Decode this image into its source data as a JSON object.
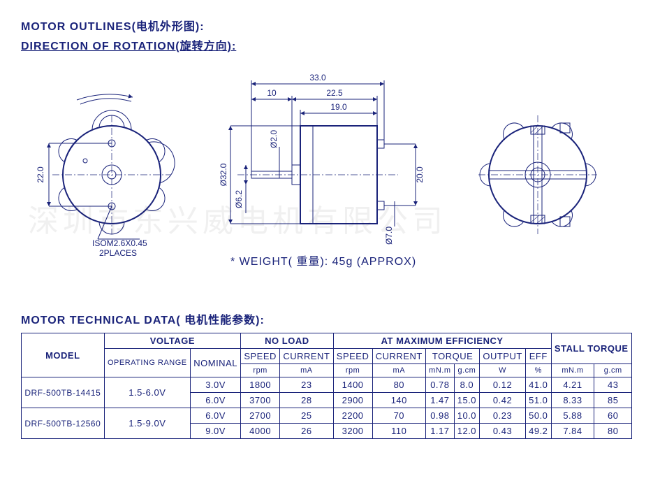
{
  "titles": {
    "outlines": "MOTOR OUTLINES(电机外形图):",
    "rotation": "DIRECTION OF ROTATION(旋转方向):",
    "tech": "MOTOR TECHNICAL DATA( 电机性能参数):"
  },
  "weight_note": "* WEIGHT( 重量): 45g (APPROX)",
  "screw_note1": "ISOM2.6X0.45",
  "screw_note2": "2PLACES",
  "watermark": "深圳市东兴威电机有限公司",
  "dims": {
    "d22": "22.0",
    "d33": "33.0",
    "d10": "10",
    "d225": "22.5",
    "d19": "19.0",
    "d32": "Ø32.0",
    "d62": "Ø6.2",
    "d20_shaft": "Ø2.0",
    "d70": "Ø7.0",
    "d200": "20.0"
  },
  "table": {
    "headers": {
      "model": "MODEL",
      "voltage": "VOLTAGE",
      "noload": "NO LOAD",
      "maxeff": "AT MAXIMUM EFFICIENCY",
      "stall": "STALL TORQUE",
      "oprange": "OPERATING RANGE",
      "nominal": "NOMINAL",
      "speed": "SPEED",
      "current": "CURRENT",
      "torque": "TORQUE",
      "output": "OUTPUT",
      "eff": "EFF",
      "rpm": "rpm",
      "ma": "mA",
      "mnm": "mN.m",
      "gcm": "g.cm",
      "w": "W",
      "pct": "%"
    },
    "rows": [
      {
        "model": "DRF-500TB-14415",
        "range": "1.5-6.0V",
        "lines": [
          {
            "nom": "3.0V",
            "nl_rpm": "1800",
            "nl_ma": "23",
            "me_rpm": "1400",
            "me_ma": "80",
            "me_mnm": "0.78",
            "me_gcm": "8.0",
            "me_w": "0.12",
            "me_eff": "41.0",
            "st_mnm": "4.21",
            "st_gcm": "43"
          },
          {
            "nom": "6.0V",
            "nl_rpm": "3700",
            "nl_ma": "28",
            "me_rpm": "2900",
            "me_ma": "140",
            "me_mnm": "1.47",
            "me_gcm": "15.0",
            "me_w": "0.42",
            "me_eff": "51.0",
            "st_mnm": "8.33",
            "st_gcm": "85"
          }
        ]
      },
      {
        "model": "DRF-500TB-12560",
        "range": "1.5-9.0V",
        "lines": [
          {
            "nom": "6.0V",
            "nl_rpm": "2700",
            "nl_ma": "25",
            "me_rpm": "2200",
            "me_ma": "70",
            "me_mnm": "0.98",
            "me_gcm": "10.0",
            "me_w": "0.23",
            "me_eff": "50.0",
            "st_mnm": "5.88",
            "st_gcm": "60"
          },
          {
            "nom": "9.0V",
            "nl_rpm": "4000",
            "nl_ma": "26",
            "me_rpm": "3200",
            "me_ma": "110",
            "me_mnm": "1.17",
            "me_gcm": "12.0",
            "me_w": "0.43",
            "me_eff": "49.2",
            "st_mnm": "7.84",
            "st_gcm": "80"
          }
        ]
      }
    ]
  },
  "style": {
    "stroke": "#1a237a",
    "text_color": "#1a237a",
    "bg": "#ffffff"
  }
}
